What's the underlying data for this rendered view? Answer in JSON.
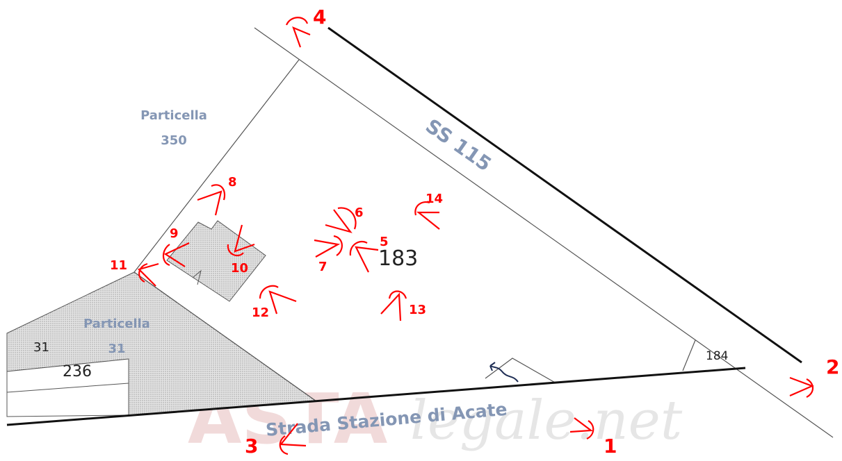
{
  "parcels": {
    "main_number": "183",
    "small_number": "184",
    "left_label_1": "31",
    "left_label_2": "236"
  },
  "labels": {
    "particella_350_line1": "Particella",
    "particella_350_line2": "350",
    "particella_31_line1": "Particella",
    "particella_31_line2": "31",
    "road_ss115": "SS 115",
    "road_stazione": "Strada Stazione di Acate"
  },
  "viewpoints": [
    "1",
    "2",
    "3",
    "4",
    "5",
    "6",
    "7",
    "8",
    "9",
    "10",
    "11",
    "12",
    "13",
    "14"
  ],
  "watermark": {
    "brand_bold": "ASTA",
    "brand_rest": "legale.net"
  },
  "colors": {
    "marker": "#ff0000",
    "label_blue": "#8496b4",
    "line": "#555555",
    "hatch": "#cfcfcf"
  }
}
